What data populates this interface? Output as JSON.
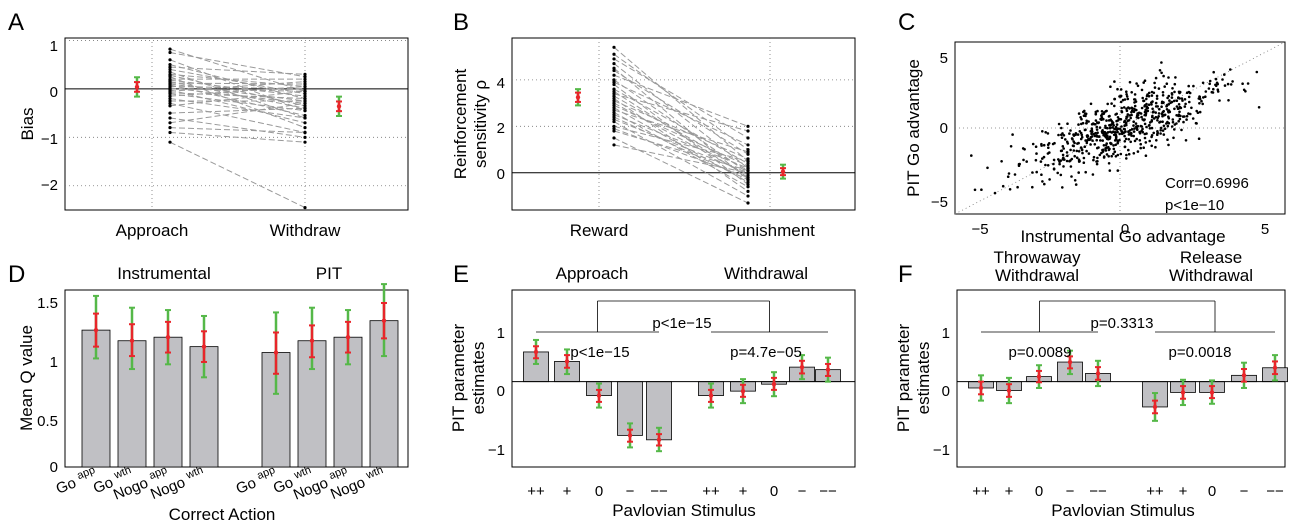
{
  "colors": {
    "bar": "#c0c0c4",
    "line": "#999999",
    "err_outer": "#55b848",
    "err_inner": "#e8262b",
    "dot": "#000000"
  },
  "chart_data": [
    {
      "panel": "A",
      "type": "scatter",
      "title": "",
      "xlabel": "",
      "ylabel": "Bias",
      "categories": [
        "Approach",
        "Withdraw"
      ],
      "ylim": [
        -2.5,
        1.05
      ],
      "yticks": [
        "1",
        "0",
        "−1",
        "−2"
      ],
      "summary": [
        {
          "name": "Approach",
          "mean": 0.04,
          "inner": [
            -0.06,
            0.14
          ],
          "outer": [
            -0.16,
            0.24
          ]
        },
        {
          "name": "Withdraw",
          "mean": -0.36,
          "inner": [
            -0.46,
            -0.26
          ],
          "outer": [
            -0.56,
            -0.16
          ]
        }
      ],
      "pairs": [
        [
          0.82,
          -0.05
        ],
        [
          0.75,
          0.25
        ],
        [
          0.6,
          -0.45
        ],
        [
          0.5,
          -0.2
        ],
        [
          0.45,
          0.3
        ],
        [
          0.4,
          -0.1
        ],
        [
          0.35,
          -0.6
        ],
        [
          0.3,
          0.05
        ],
        [
          0.28,
          -0.35
        ],
        [
          0.25,
          -0.8
        ],
        [
          0.2,
          0.2
        ],
        [
          0.18,
          -0.15
        ],
        [
          0.15,
          -0.4
        ],
        [
          0.12,
          0.1
        ],
        [
          0.1,
          -0.25
        ],
        [
          0.08,
          -0.55
        ],
        [
          0.05,
          0.0
        ],
        [
          0.02,
          -0.3
        ],
        [
          0.0,
          -0.05
        ],
        [
          -0.02,
          -0.7
        ],
        [
          -0.05,
          0.15
        ],
        [
          -0.08,
          -0.2
        ],
        [
          -0.1,
          -0.45
        ],
        [
          -0.15,
          0.05
        ],
        [
          -0.2,
          -0.6
        ],
        [
          -0.25,
          -0.25
        ],
        [
          -0.3,
          -0.9
        ],
        [
          -0.35,
          -0.05
        ],
        [
          -0.5,
          -0.4
        ],
        [
          -0.6,
          -1.0
        ],
        [
          -0.7,
          -0.3
        ],
        [
          -0.8,
          -0.9
        ],
        [
          -0.9,
          -1.1
        ],
        [
          -1.1,
          -2.45
        ]
      ]
    },
    {
      "panel": "B",
      "type": "scatter",
      "title": "",
      "xlabel": "",
      "ylabel": "Reinforcement sensitivity ρ",
      "categories": [
        "Reward",
        "Punishment"
      ],
      "ylim": [
        -1.6,
        5.8
      ],
      "yticks": [
        "4",
        "2",
        "0"
      ],
      "summary": [
        {
          "name": "Reward",
          "mean": 3.25,
          "inner": [
            3.05,
            3.45
          ],
          "outer": [
            2.9,
            3.6
          ]
        },
        {
          "name": "Punishment",
          "mean": 0.05,
          "inner": [
            -0.1,
            0.2
          ],
          "outer": [
            -0.25,
            0.35
          ]
        }
      ],
      "pairs": [
        [
          5.4,
          0.5
        ],
        [
          5.1,
          1.0
        ],
        [
          4.9,
          1.5
        ],
        [
          4.7,
          0.2
        ],
        [
          4.5,
          -0.3
        ],
        [
          4.4,
          0.8
        ],
        [
          4.2,
          2.0
        ],
        [
          4.0,
          0.0
        ],
        [
          3.9,
          1.2
        ],
        [
          3.8,
          -0.5
        ],
        [
          3.6,
          0.4
        ],
        [
          3.5,
          -0.2
        ],
        [
          3.4,
          1.8
        ],
        [
          3.3,
          0.1
        ],
        [
          3.2,
          -0.8
        ],
        [
          3.1,
          0.6
        ],
        [
          3.0,
          -0.1
        ],
        [
          2.9,
          0.3
        ],
        [
          2.8,
          -0.4
        ],
        [
          2.7,
          0.9
        ],
        [
          2.6,
          -0.6
        ],
        [
          2.5,
          0.2
        ],
        [
          2.4,
          -0.3
        ],
        [
          2.3,
          0.0
        ],
        [
          2.2,
          -1.0
        ],
        [
          2.0,
          0.5
        ],
        [
          1.9,
          -0.2
        ],
        [
          1.8,
          0.1
        ],
        [
          1.5,
          -1.3
        ],
        [
          1.2,
          0.0
        ]
      ]
    },
    {
      "panel": "C",
      "type": "scatter",
      "title": "",
      "xlabel": "Instrumental Go advantage",
      "ylabel": "PIT Go advantage",
      "xlim": [
        -6,
        6
      ],
      "ylim": [
        -6,
        6
      ],
      "xticks": [
        "−5",
        "0",
        "5"
      ],
      "yticks": [
        "5",
        "0",
        "−5"
      ],
      "annotations": [
        "Corr=0.6996",
        "p<1e−10"
      ],
      "n_points": 700,
      "correlation": 0.6996
    },
    {
      "panel": "D",
      "type": "bar",
      "title": "",
      "xlabel": "Correct Action",
      "ylabel": "Mean Q value",
      "group_titles": [
        "Instrumental",
        "PIT"
      ],
      "ylim": [
        0,
        1.5
      ],
      "yticks": [
        "1.5",
        "1",
        "0.5",
        "0"
      ],
      "tick_main": [
        "Go",
        "Go",
        "Nogo",
        "Nogo",
        "Go",
        "Go",
        "Nogo",
        "Nogo"
      ],
      "tick_sub": [
        "app",
        "wth",
        "app",
        "wth",
        "app",
        "wth",
        "app",
        "wth"
      ],
      "values": [
        1.16,
        1.07,
        1.1,
        1.02,
        0.97,
        1.07,
        1.1,
        1.24
      ],
      "inner": [
        [
          1.02,
          1.3
        ],
        [
          0.94,
          1.21
        ],
        [
          0.97,
          1.23
        ],
        [
          0.89,
          1.15
        ],
        [
          0.79,
          1.14
        ],
        [
          0.93,
          1.2
        ],
        [
          0.97,
          1.23
        ],
        [
          1.09,
          1.39
        ]
      ],
      "outer": [
        [
          0.92,
          1.45
        ],
        [
          0.83,
          1.35
        ],
        [
          0.87,
          1.33
        ],
        [
          0.76,
          1.28
        ],
        [
          0.62,
          1.31
        ],
        [
          0.83,
          1.35
        ],
        [
          0.87,
          1.33
        ],
        [
          0.94,
          1.55
        ]
      ]
    },
    {
      "panel": "E",
      "type": "bar",
      "title": "",
      "xlabel": "Pavlovian Stimulus",
      "ylabel": "PIT parameter estimates",
      "group_titles": [
        "Approach",
        "Withdrawal"
      ],
      "ylim": [
        -1.35,
        1.45
      ],
      "yticks": [
        "1",
        "0",
        "−1"
      ],
      "categories": [
        "++",
        "+",
        "0",
        "−",
        "−−",
        "++",
        "+",
        "0",
        "−",
        "−−"
      ],
      "values": [
        0.47,
        0.32,
        -0.22,
        -0.85,
        -0.92,
        -0.22,
        -0.15,
        -0.04,
        0.23,
        0.19
      ],
      "inner": [
        [
          0.37,
          0.56
        ],
        [
          0.22,
          0.42
        ],
        [
          -0.32,
          -0.13
        ],
        [
          -0.95,
          -0.76
        ],
        [
          -1.01,
          -0.83
        ],
        [
          -0.32,
          -0.13
        ],
        [
          -0.24,
          -0.05
        ],
        [
          -0.13,
          0.06
        ],
        [
          0.13,
          0.33
        ],
        [
          0.09,
          0.28
        ]
      ],
      "outer": [
        [
          0.28,
          0.66
        ],
        [
          0.12,
          0.51
        ],
        [
          -0.41,
          -0.03
        ],
        [
          -1.04,
          -0.66
        ],
        [
          -1.1,
          -0.73
        ],
        [
          -0.41,
          -0.03
        ],
        [
          -0.34,
          0.04
        ],
        [
          -0.23,
          0.15
        ],
        [
          0.04,
          0.42
        ],
        [
          0.0,
          0.38
        ]
      ],
      "annotations": [
        "p<1e−15",
        "p<1e−15",
        "p=4.7e−05"
      ]
    },
    {
      "panel": "F",
      "type": "bar",
      "title": "",
      "xlabel": "Pavlovian Stimulus",
      "ylabel": "PIT parameter estimates",
      "group_titles": [
        "Throwaway Withdrawal",
        "Release Withdrawal"
      ],
      "ylim": [
        -1.35,
        1.45
      ],
      "yticks": [
        "1",
        "0",
        "−1"
      ],
      "categories": [
        "++",
        "+",
        "0",
        "−",
        "−−",
        "++",
        "+",
        "0",
        "−",
        "−−"
      ],
      "values": [
        -0.1,
        -0.14,
        0.08,
        0.31,
        0.13,
        -0.4,
        -0.17,
        -0.17,
        0.1,
        0.22
      ],
      "inner": [
        [
          -0.2,
          0.0
        ],
        [
          -0.24,
          -0.04
        ],
        [
          -0.01,
          0.17
        ],
        [
          0.21,
          0.4
        ],
        [
          0.03,
          0.23
        ],
        [
          -0.5,
          -0.3
        ],
        [
          -0.27,
          -0.07
        ],
        [
          -0.26,
          -0.07
        ],
        [
          0.0,
          0.2
        ],
        [
          0.12,
          0.32
        ]
      ],
      "outer": [
        [
          -0.3,
          0.1
        ],
        [
          -0.34,
          0.06
        ],
        [
          -0.1,
          0.26
        ],
        [
          0.12,
          0.49
        ],
        [
          -0.07,
          0.33
        ],
        [
          -0.62,
          -0.18
        ],
        [
          -0.37,
          0.03
        ],
        [
          -0.35,
          0.02
        ],
        [
          -0.1,
          0.3
        ],
        [
          0.02,
          0.42
        ]
      ],
      "annotations": [
        "p=0.3313",
        "p=0.0089",
        "p=0.0018"
      ]
    }
  ],
  "labels": {
    "A": "A",
    "B": "B",
    "C": "C",
    "D": "D",
    "E": "E",
    "F": "F",
    "a_ylabel": "Bias",
    "a_x1": "Approach",
    "a_x2": "Withdraw",
    "a_y1": "1",
    "a_y2": "0",
    "a_y3": "−1",
    "a_y4": "−2",
    "b_ylabel1": "Reinforcement",
    "b_ylabel2": "sensitivity ρ",
    "b_x1": "Reward",
    "b_x2": "Punishment",
    "b_y1": "4",
    "b_y2": "2",
    "b_y3": "0",
    "c_ylabel": "PIT Go advantage",
    "c_xlabel": "Instrumental Go advantage",
    "c_corr": "Corr=0.6996",
    "c_p": "p<1e−10",
    "c_x1": "−5",
    "c_x2": "0",
    "c_x3": "5",
    "c_y1": "5",
    "c_y2": "0",
    "c_y3": "−5",
    "d_ylabel": "Mean Q value",
    "d_xlabel": "Correct Action",
    "d_t1": "Instrumental",
    "d_t2": "PIT",
    "d_y1": "1.5",
    "d_y2": "1",
    "d_y3": "0.5",
    "d_y4": "0",
    "e_ylabel1": "PIT parameter",
    "e_ylabel2": "estimates",
    "e_xlabel": "Pavlovian Stimulus",
    "e_t1": "Approach",
    "e_t2": "Withdrawal",
    "e_p_all": "p<1e−15",
    "e_p1": "p<1e−15",
    "e_p2": "p=4.7e−05",
    "f_ylabel1": "PIT parameter",
    "f_ylabel2": "estimates",
    "f_xlabel": "Pavlovian Stimulus",
    "f_t1a": "Throwaway",
    "f_t1b": "Withdrawal",
    "f_t2a": "Release",
    "f_t2b": "Withdrawal",
    "f_p_all": "p=0.3313",
    "f_p1": "p=0.0089",
    "f_p2": "p=0.0018",
    "y_1": "1",
    "y_0": "0",
    "y_m1": "−1"
  }
}
